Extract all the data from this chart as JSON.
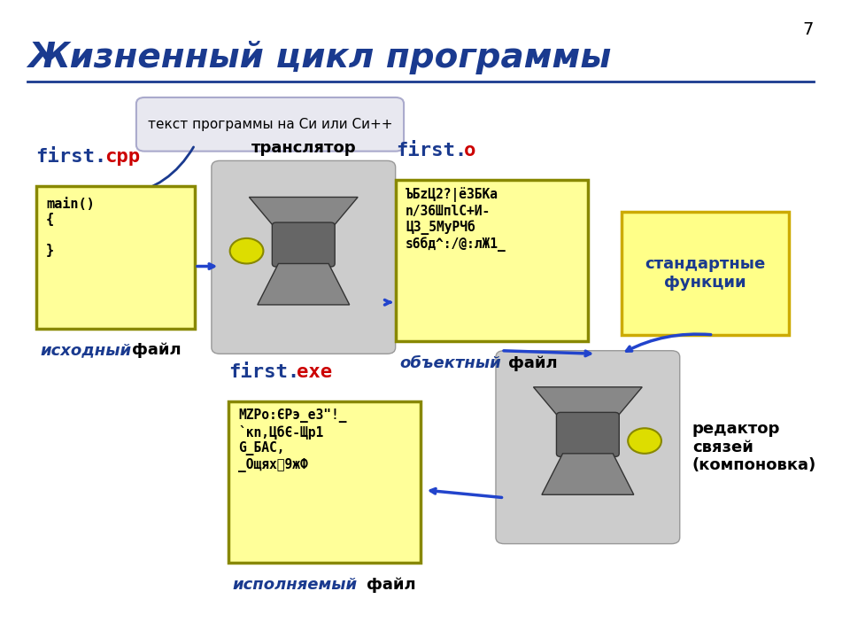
{
  "title": "Жизненный цикл программы",
  "title_color": "#1a3a8f",
  "title_fontsize": 28,
  "bg_color": "#ffffff",
  "page_number": "7",
  "tooltip_text": "текст программы на Си или Си++",
  "translator_label": "транслятор",
  "source_file_content": "main()\n{\n\n}",
  "source_caption_blue": "исходный",
  "source_caption_black": " файл",
  "object_file_content": "ЪБzЦ2?|ёЗБКа\nn/36ШпlС+И-\nЦЗ_5МуРЧб\ns6бд^:/@:лЖ1_",
  "object_caption_blue": "объектный",
  "object_caption_black": " файл",
  "exe_file_content": "MZРо:ЄРэ_е3\"!_\n`кn,ЦбЄ-Щр1\nG_БАС,\n_Ощяхⴭ9жФ",
  "exe_caption_blue": "исполняемый",
  "exe_caption_black": " файл",
  "std_func_text": "стандартные\nфункции",
  "linker_label": "редактор\nсвязей\n(компоновка)",
  "yellow_color": "#ffffaa",
  "yellow_border": "#cccc00",
  "code_bg": "#ffff99",
  "blue_label": "#1a3a8f",
  "red_label": "#cc0000",
  "dark_blue": "#1a3a8f",
  "gray_box": "#cccccc",
  "arrow_color": "#2244cc"
}
